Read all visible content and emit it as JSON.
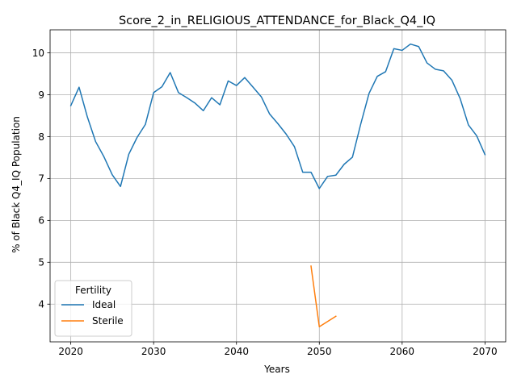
{
  "chart_data": {
    "type": "line",
    "title": "Score_2_in_RELIGIOUS_ATTENDANCE_for_Black_Q4_IQ",
    "xlabel": "Years",
    "ylabel": "% of Black Q4_IQ Population",
    "xlim": [
      2017.5,
      2072.5
    ],
    "ylim": [
      3.1,
      10.55
    ],
    "xticks": [
      2020,
      2030,
      2040,
      2050,
      2060,
      2070
    ],
    "yticks": [
      4,
      5,
      6,
      7,
      8,
      9,
      10
    ],
    "grid": true,
    "legend": {
      "title": "Fertility",
      "placement": "lower-left"
    },
    "series": [
      {
        "name": "Ideal",
        "color": "#1f77b4",
        "x": [
          2020,
          2021,
          2022,
          2023,
          2024,
          2025,
          2026,
          2027,
          2028,
          2029,
          2030,
          2031,
          2032,
          2033,
          2034,
          2035,
          2036,
          2037,
          2038,
          2039,
          2040,
          2041,
          2042,
          2043,
          2044,
          2045,
          2046,
          2047,
          2048,
          2049,
          2050,
          2051,
          2052,
          2053,
          2054,
          2055,
          2056,
          2057,
          2058,
          2059,
          2060,
          2061,
          2062,
          2063,
          2064,
          2065,
          2066,
          2067,
          2068,
          2069,
          2070
        ],
        "values": [
          8.74,
          9.18,
          8.47,
          7.88,
          7.52,
          7.09,
          6.81,
          7.58,
          7.98,
          8.29,
          9.05,
          9.19,
          9.53,
          9.05,
          8.93,
          8.8,
          8.62,
          8.93,
          8.76,
          9.33,
          9.22,
          9.41,
          9.18,
          8.95,
          8.54,
          8.31,
          8.06,
          7.76,
          7.15,
          7.15,
          6.76,
          7.05,
          7.08,
          7.34,
          7.51,
          8.3,
          9.03,
          9.44,
          9.55,
          10.1,
          10.06,
          10.21,
          10.15,
          9.76,
          9.61,
          9.57,
          9.35,
          8.91,
          8.28,
          8.02,
          7.57
        ]
      },
      {
        "name": "Sterile",
        "color": "#ff7f0e",
        "x": [
          2049,
          2050,
          2052
        ],
        "values": [
          4.91,
          3.46,
          3.71
        ]
      }
    ]
  }
}
